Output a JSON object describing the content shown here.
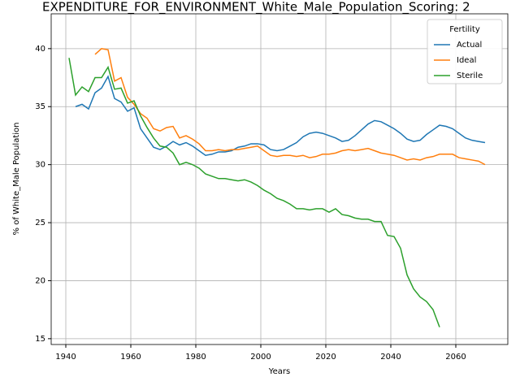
{
  "chart_data": {
    "type": "line",
    "title": "EXPENDITURE_FOR_ENVIRONMENT_White_Male_Population_Scoring: 2",
    "x_label": "Years",
    "y_label": "% of White_Male Population",
    "legend_title": "Fertility",
    "legend_loc": "upper right",
    "grid": true,
    "xlim": [
      1935.5,
      2076
    ],
    "ylim": [
      14.5,
      43.0
    ],
    "xticks": [
      1940,
      1960,
      1980,
      2000,
      2020,
      2040,
      2060
    ],
    "yticks": [
      15,
      20,
      25,
      30,
      35,
      40
    ],
    "x": [
      1941,
      1943,
      1945,
      1947,
      1949,
      1951,
      1953,
      1955,
      1957,
      1959,
      1961,
      1963,
      1965,
      1967,
      1969,
      1971,
      1973,
      1975,
      1977,
      1979,
      1981,
      1983,
      1985,
      1987,
      1989,
      1991,
      1993,
      1995,
      1997,
      1999,
      2001,
      2003,
      2005,
      2007,
      2009,
      2011,
      2013,
      2015,
      2017,
      2019,
      2021,
      2023,
      2025,
      2027,
      2029,
      2031,
      2033,
      2035,
      2037,
      2039,
      2041,
      2043,
      2045,
      2047,
      2049,
      2051,
      2053,
      2055,
      2057,
      2059,
      2061,
      2063,
      2065,
      2067,
      2069
    ],
    "series": [
      {
        "name": "Actual",
        "color": "#1f77b4",
        "values": [
          null,
          35.0,
          35.2,
          34.8,
          36.2,
          36.6,
          37.6,
          35.7,
          35.4,
          34.6,
          34.9,
          33.1,
          32.3,
          31.5,
          31.3,
          31.6,
          32.0,
          31.7,
          31.9,
          31.6,
          31.2,
          30.8,
          30.9,
          31.1,
          31.1,
          31.2,
          31.5,
          31.6,
          31.8,
          31.8,
          31.7,
          31.3,
          31.2,
          31.3,
          31.6,
          31.9,
          32.4,
          32.7,
          32.8,
          32.7,
          32.5,
          32.3,
          32.0,
          32.1,
          32.5,
          33.0,
          33.5,
          33.8,
          33.7,
          33.4,
          33.1,
          32.7,
          32.2,
          32.0,
          32.1,
          32.6,
          33.0,
          33.4,
          33.3,
          33.1,
          32.7,
          32.3,
          32.1,
          32.0,
          31.9
        ]
      },
      {
        "name": "Ideal",
        "color": "#ff7f0e",
        "values": [
          null,
          null,
          null,
          null,
          39.5,
          40.0,
          39.9,
          37.2,
          37.5,
          35.8,
          35.2,
          34.4,
          34.0,
          33.1,
          32.9,
          33.2,
          33.3,
          32.3,
          32.5,
          32.2,
          31.8,
          31.2,
          31.2,
          31.3,
          31.2,
          31.3,
          31.3,
          31.4,
          31.5,
          31.6,
          31.2,
          30.8,
          30.7,
          30.8,
          30.8,
          30.7,
          30.8,
          30.6,
          30.7,
          30.9,
          30.9,
          31.0,
          31.2,
          31.3,
          31.2,
          31.3,
          31.4,
          31.2,
          31.0,
          30.9,
          30.8,
          30.6,
          30.4,
          30.5,
          30.4,
          30.6,
          30.7,
          30.9,
          30.9,
          30.9,
          30.6,
          30.5,
          30.4,
          30.3,
          30.0
        ]
      },
      {
        "name": "Sterile",
        "color": "#2ca02c",
        "values": [
          39.2,
          36.0,
          36.7,
          36.3,
          37.5,
          37.5,
          38.4,
          36.5,
          36.6,
          35.3,
          35.5,
          34.2,
          33.2,
          32.3,
          31.6,
          31.5,
          31.0,
          30.0,
          30.2,
          30.0,
          29.7,
          29.2,
          29.0,
          28.8,
          28.8,
          28.7,
          28.6,
          28.7,
          28.5,
          28.2,
          27.8,
          27.5,
          27.1,
          26.9,
          26.6,
          26.2,
          26.2,
          26.1,
          26.2,
          26.2,
          25.9,
          26.2,
          25.7,
          25.6,
          25.4,
          25.3,
          25.3,
          25.1,
          25.1,
          23.9,
          23.8,
          22.8,
          20.5,
          19.3,
          18.6,
          18.2,
          17.5,
          16.0,
          null,
          null,
          null,
          null,
          null,
          null,
          null
        ]
      }
    ]
  }
}
